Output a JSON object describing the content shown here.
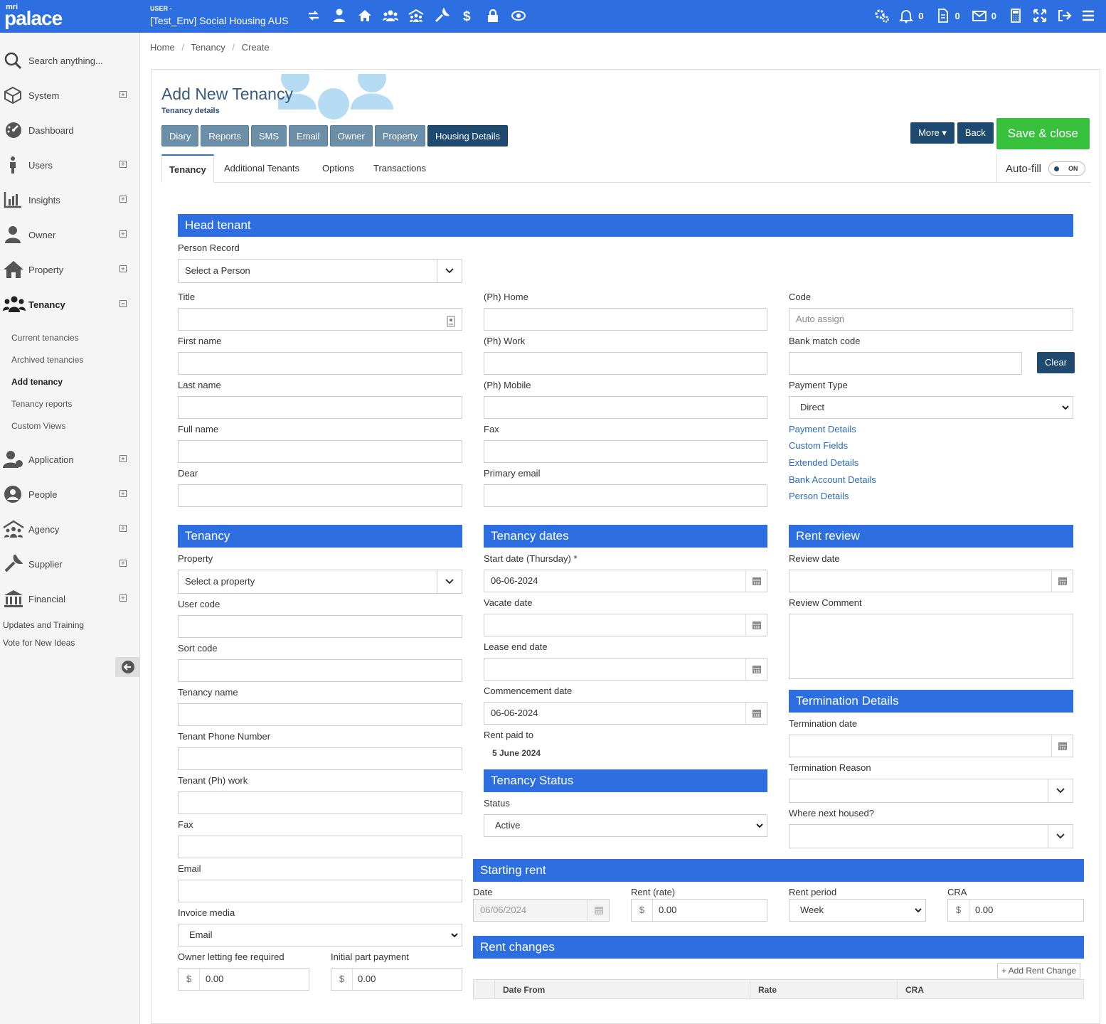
{
  "app": {
    "logo_top": "mri",
    "logo_main": "palace",
    "user_label": "USER -",
    "environment": "[Test_Env] Social Housing AUS"
  },
  "topbar": {
    "icons": [
      "sync-icon",
      "user-icon",
      "home-icon",
      "group-icon",
      "agency-icon",
      "wrench-icon",
      "dollar-icon",
      "lock-icon",
      "eye-icon"
    ],
    "counts": {
      "notifications": "0",
      "documents": "0",
      "messages": "0"
    }
  },
  "sidebar": {
    "search": "Search anything...",
    "items": [
      {
        "label": "System"
      },
      {
        "label": "Dashboard"
      },
      {
        "label": "Users"
      },
      {
        "label": "Insights"
      },
      {
        "label": "Owner"
      },
      {
        "label": "Property"
      },
      {
        "label": "Tenancy"
      },
      {
        "label": "Application"
      },
      {
        "label": "People"
      },
      {
        "label": "Agency"
      },
      {
        "label": "Supplier"
      },
      {
        "label": "Financial"
      }
    ],
    "tenancy_sub": [
      "Current tenancies",
      "Archived tenancies",
      "Add tenancy",
      "Tenancy reports",
      "Custom Views"
    ],
    "links": [
      "Updates and Training",
      "Vote for New Ideas"
    ]
  },
  "breadcrumb": [
    "Home",
    "Tenancy",
    "Create"
  ],
  "page": {
    "title": "Add New Tenancy",
    "subtitle": "Tenancy details"
  },
  "toolbar": {
    "buttons": [
      "Diary",
      "Reports",
      "SMS",
      "Email",
      "Owner",
      "Property",
      "Housing Details"
    ],
    "more": "More",
    "back": "Back",
    "save": "Save & close"
  },
  "tabs": [
    "Tenancy",
    "Additional Tenants",
    "Options",
    "Transactions"
  ],
  "autofill": {
    "label": "Auto-fill",
    "state": "ON"
  },
  "head_tenant": {
    "title": "Head tenant",
    "person_record_label": "Person Record",
    "person_record_value": "Select a Person",
    "col1": [
      "Title",
      "First name",
      "Last name",
      "Full name",
      "Dear"
    ],
    "col2": [
      "(Ph) Home",
      "(Ph) Work",
      "(Ph) Mobile",
      "Fax",
      "Primary email"
    ],
    "code_label": "Code",
    "code_placeholder": "Auto assign",
    "bank_match_label": "Bank match code",
    "clear": "Clear",
    "payment_type_label": "Payment Type",
    "payment_type_value": "Direct",
    "links": [
      "Payment Details",
      "Custom Fields",
      "Extended Details",
      "Bank Account Details",
      "Person Details"
    ]
  },
  "tenancy": {
    "title": "Tenancy",
    "property_label": "Property",
    "property_value": "Select a property",
    "fields": [
      "User code",
      "Sort code",
      "Tenancy name",
      "Tenant Phone Number",
      "Tenant (Ph) work",
      "Fax",
      "Email"
    ],
    "invoice_media_label": "Invoice media",
    "invoice_media_value": "Email",
    "owner_fee_label": "Owner letting fee required",
    "owner_fee_value": "0.00",
    "initial_payment_label": "Initial part payment",
    "initial_payment_value": "0.00",
    "currency": "$"
  },
  "tenancy_dates": {
    "title": "Tenancy dates",
    "start_label": "Start date (Thursday) *",
    "start_value": "06-06-2024",
    "vacate_label": "Vacate date",
    "lease_end_label": "Lease end date",
    "commencement_label": "Commencement date",
    "commencement_value": "06-06-2024",
    "rent_paid_label": "Rent paid to",
    "rent_paid_value": "5 June 2024"
  },
  "tenancy_status": {
    "title": "Tenancy Status",
    "status_label": "Status",
    "status_value": "Active"
  },
  "rent_review": {
    "title": "Rent review",
    "review_date_label": "Review date",
    "review_comment_label": "Review Comment"
  },
  "termination": {
    "title": "Termination Details",
    "date_label": "Termination date",
    "reason_label": "Termination Reason",
    "next_housed_label": "Where next housed?"
  },
  "starting_rent": {
    "title": "Starting rent",
    "date_label": "Date",
    "date_value": "06/06/2024",
    "rate_label": "Rent (rate)",
    "rate_value": "0.00",
    "period_label": "Rent period",
    "period_value": "Week",
    "cra_label": "CRA",
    "cra_value": "0.00"
  },
  "rent_changes": {
    "title": "Rent changes",
    "add": "+ Add Rent Change",
    "columns": [
      "Date From",
      "Rate",
      "CRA"
    ]
  },
  "colors": {
    "primary": "#2d6fe0",
    "dark_button": "#1d4a6e",
    "save": "#37c13c"
  }
}
